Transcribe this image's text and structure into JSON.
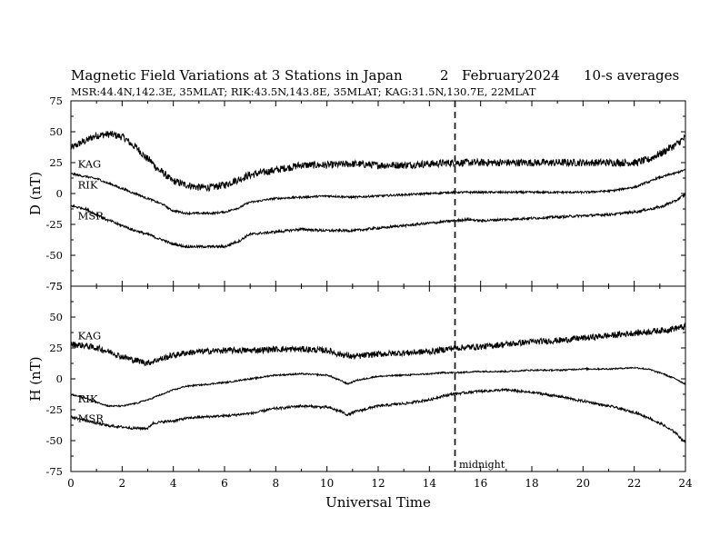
{
  "title": "Magnetic Field Variations at 3 Stations in Japan",
  "date_day": "2",
  "date_month_year": "February2024",
  "averaging": "10-s averages",
  "stations_line": "MSR:44.4N,142.3E, 35MLAT;  RIK:43.5N,143.8E, 35MLAT;  KAG:31.5N,130.7E, 22MLAT",
  "xlabel": "Universal Time",
  "midnight_label": "midnight",
  "chart_data": [
    {
      "type": "line",
      "panel": "D",
      "ylabel": "D (nT)",
      "ylim": [
        -75,
        75
      ],
      "yticks": [
        -75,
        -50,
        -25,
        0,
        25,
        50,
        75
      ],
      "xlim": [
        0,
        24
      ],
      "xticks": [
        0,
        2,
        4,
        6,
        8,
        10,
        12,
        14,
        16,
        18,
        20,
        22,
        24
      ],
      "grid": false,
      "marker_line_x": 15,
      "series": [
        {
          "name": "KAG",
          "noise": 3,
          "x": [
            0,
            0.5,
            1,
            1.5,
            2,
            2.5,
            3,
            3.5,
            4,
            4.5,
            5,
            5.5,
            6,
            6.5,
            7,
            7.5,
            8,
            8.5,
            9,
            10,
            11,
            12,
            13,
            14,
            15,
            16,
            17,
            18,
            19,
            20,
            21,
            22,
            22.5,
            23,
            23.5,
            24
          ],
          "y": [
            37,
            42,
            47,
            48,
            46,
            38,
            28,
            18,
            10,
            7,
            5,
            5,
            7,
            11,
            15,
            17,
            19,
            21,
            23,
            23,
            24,
            23,
            23,
            24,
            25,
            25,
            25,
            25,
            25,
            25,
            25,
            25,
            27,
            32,
            38,
            45
          ]
        },
        {
          "name": "RIK",
          "noise": 0.8,
          "x": [
            0,
            0.5,
            1,
            1.5,
            2,
            2.5,
            3,
            3.5,
            4,
            4.5,
            5,
            5.5,
            6,
            6.5,
            7,
            8,
            9,
            10,
            11,
            12,
            13,
            14,
            15,
            16,
            17,
            18,
            19,
            20,
            21,
            22,
            22.5,
            23,
            23.5,
            24
          ],
          "y": [
            16,
            14,
            12,
            8,
            4,
            0,
            -4,
            -8,
            -14,
            -16,
            -16,
            -16,
            -15,
            -12,
            -7,
            -4,
            -3,
            -2,
            -3,
            -2,
            -1,
            0,
            1,
            1,
            1,
            1,
            1,
            1,
            2,
            5,
            9,
            13,
            16,
            19
          ]
        },
        {
          "name": "MSR",
          "noise": 1,
          "x": [
            0,
            0.5,
            1,
            1.5,
            2,
            2.5,
            3,
            3.5,
            4,
            4.5,
            5,
            5.5,
            6,
            6.5,
            7,
            7.5,
            8,
            9,
            10,
            11,
            12,
            13,
            14,
            15,
            15.5,
            16,
            17,
            18,
            19,
            20,
            21,
            22,
            22.5,
            23,
            23.5,
            24
          ],
          "y": [
            -10,
            -12,
            -17,
            -22,
            -26,
            -30,
            -33,
            -37,
            -41,
            -43,
            -43,
            -43,
            -43,
            -39,
            -33,
            -32,
            -31,
            -29,
            -30,
            -30,
            -28,
            -26,
            -24,
            -22,
            -21,
            -22,
            -21,
            -20,
            -19,
            -18,
            -17,
            -15,
            -13,
            -11,
            -7,
            -1
          ]
        }
      ],
      "labels": [
        {
          "text": "KAG",
          "x": 0.2,
          "y": 21
        },
        {
          "text": "RIK",
          "x": 0.2,
          "y": 4
        },
        {
          "text": "MSR",
          "x": 0.2,
          "y": -21
        }
      ]
    },
    {
      "type": "line",
      "panel": "H",
      "ylabel": "H (nT)",
      "ylim": [
        -75,
        75
      ],
      "yticks": [
        -75,
        -50,
        -25,
        0,
        25,
        50,
        75
      ],
      "xlim": [
        0,
        24
      ],
      "xticks": [
        0,
        2,
        4,
        6,
        8,
        10,
        12,
        14,
        16,
        18,
        20,
        22,
        24
      ],
      "grid": false,
      "marker_line_x": 15,
      "series": [
        {
          "name": "KAG",
          "noise": 2.5,
          "x": [
            0,
            0.5,
            1,
            1.5,
            2,
            2.5,
            3,
            3.5,
            4,
            4.5,
            5,
            6,
            7,
            8,
            9,
            10,
            10.5,
            11,
            12,
            13,
            14,
            15,
            16,
            17,
            18,
            19,
            20,
            21,
            22,
            23,
            24
          ],
          "y": [
            28,
            27,
            25,
            22,
            18,
            15,
            13,
            16,
            19,
            21,
            22,
            23,
            23,
            24,
            24,
            23,
            20,
            18,
            20,
            21,
            22,
            25,
            26,
            28,
            30,
            31,
            33,
            35,
            37,
            39,
            42
          ]
        },
        {
          "name": "RIK",
          "noise": 0.6,
          "x": [
            0,
            0.5,
            1,
            1.5,
            2,
            2.5,
            3,
            3.5,
            4,
            4.5,
            5,
            6,
            7,
            8,
            9,
            10,
            10.5,
            10.8,
            11.2,
            12,
            13,
            14,
            14.5,
            15,
            16,
            17,
            18,
            19,
            20,
            21,
            22,
            22.5,
            23,
            23.5,
            24
          ],
          "y": [
            -13,
            -15,
            -19,
            -22,
            -22,
            -20,
            -17,
            -13,
            -9,
            -6,
            -5,
            -3,
            0,
            3,
            4,
            3,
            -1,
            -4,
            -1,
            2,
            3,
            4,
            5,
            5,
            6,
            6,
            7,
            7,
            8,
            8,
            9,
            8,
            5,
            1,
            -4
          ]
        },
        {
          "name": "MSR",
          "noise": 1,
          "x": [
            0,
            0.5,
            1,
            1.5,
            2,
            2.5,
            3,
            3.2,
            3.5,
            4,
            4.5,
            5,
            6,
            7,
            8,
            9,
            10,
            10.5,
            10.8,
            11.2,
            12,
            13,
            14,
            14.5,
            15,
            16,
            17,
            18,
            19,
            20,
            21,
            22,
            22.5,
            23,
            23.5,
            24
          ],
          "y": [
            -31,
            -33,
            -36,
            -38,
            -39,
            -40,
            -40,
            -36,
            -35,
            -34,
            -32,
            -31,
            -30,
            -28,
            -24,
            -22,
            -23,
            -26,
            -29,
            -26,
            -22,
            -20,
            -17,
            -14,
            -12,
            -10,
            -9,
            -11,
            -14,
            -18,
            -22,
            -27,
            -31,
            -36,
            -42,
            -51
          ]
        }
      ],
      "labels": [
        {
          "text": "KAG",
          "x": 0.2,
          "y": 32
        },
        {
          "text": "RIK",
          "x": 0.2,
          "y": -19
        },
        {
          "text": "MSR",
          "x": 0.2,
          "y": -35
        }
      ]
    }
  ]
}
